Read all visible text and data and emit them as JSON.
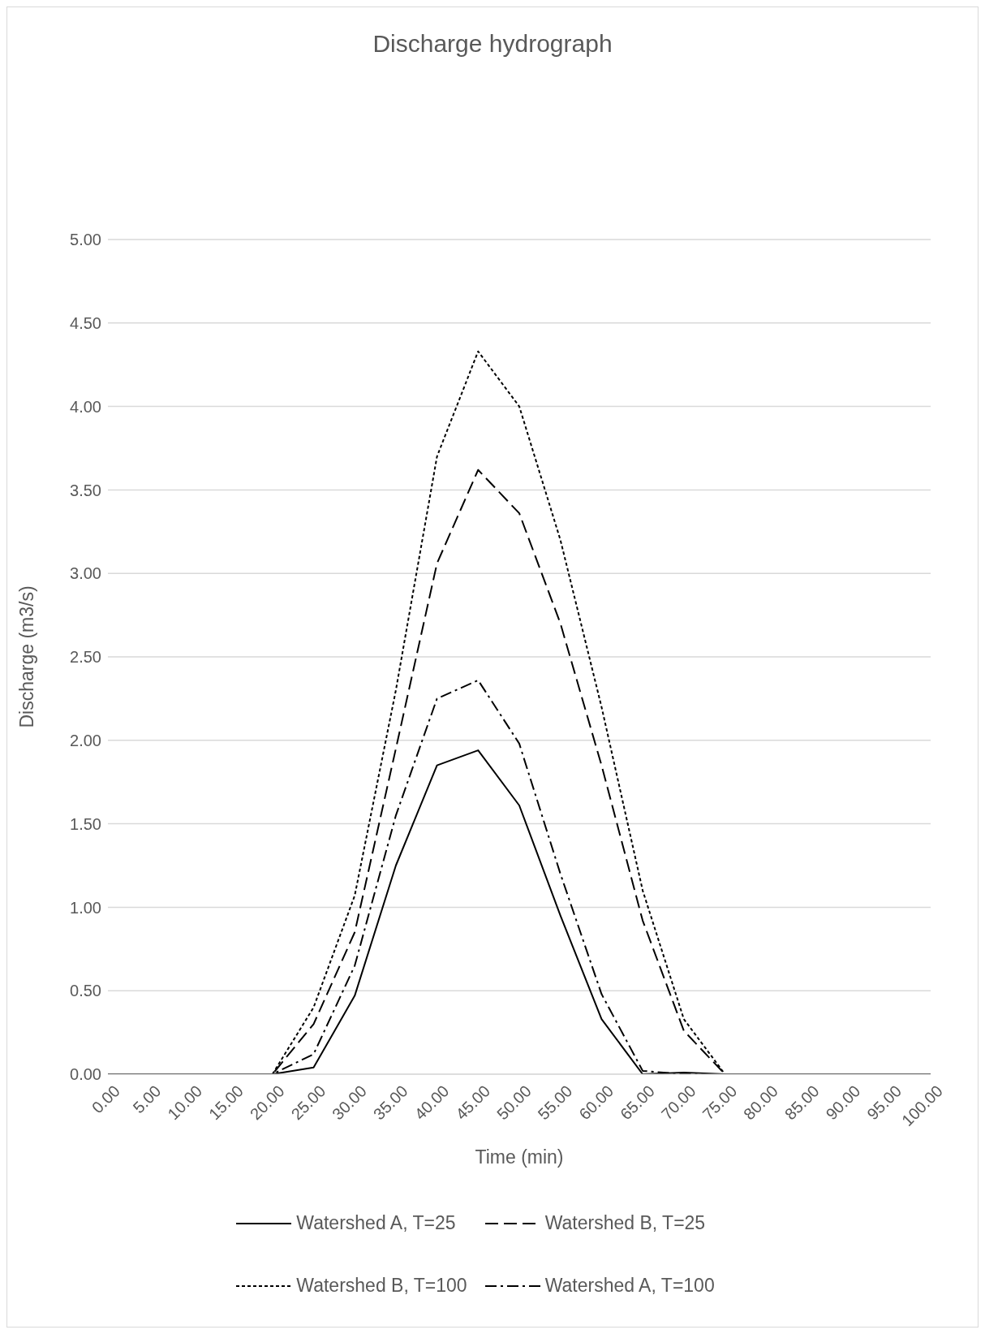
{
  "chart_data": {
    "type": "line",
    "title": "Discharge hydrograph",
    "xlabel": "Time (min)",
    "ylabel": "Discharge (m3/s)",
    "categories": [
      "0.00",
      "5.00",
      "10.00",
      "15.00",
      "20.00",
      "25.00",
      "30.00",
      "35.00",
      "40.00",
      "45.00",
      "50.00",
      "55.00",
      "60.00",
      "65.00",
      "70.00",
      "75.00",
      "80.00",
      "85.00",
      "90.00",
      "95.00",
      "100.00"
    ],
    "series": [
      {
        "name": "Watershed A, T=25",
        "color": "#000000",
        "line_style": "solid",
        "values": [
          0,
          0,
          0,
          0,
          0,
          0.04,
          0.47,
          1.25,
          1.85,
          1.94,
          1.61,
          0.95,
          0.33,
          0,
          0.01,
          0,
          0,
          0,
          0,
          0,
          0
        ]
      },
      {
        "name": "Watershed B, T=25",
        "color": "#000000",
        "line_style": "dashed",
        "values": [
          0,
          0,
          0,
          0,
          0,
          0.3,
          0.85,
          1.95,
          3.06,
          3.62,
          3.36,
          2.7,
          1.85,
          0.92,
          0.26,
          0,
          0,
          0,
          0,
          0,
          0
        ]
      },
      {
        "name": "Watershed B, T=100",
        "color": "#000000",
        "line_style": "dotted",
        "values": [
          0,
          0,
          0,
          0,
          0,
          0.4,
          1.07,
          2.3,
          3.7,
          4.33,
          4.0,
          3.2,
          2.2,
          1.1,
          0.33,
          0,
          0,
          0,
          0,
          0,
          0
        ]
      },
      {
        "name": "Watershed A, T=100",
        "color": "#000000",
        "line_style": "dashdot",
        "values": [
          0,
          0,
          0,
          0,
          0,
          0.12,
          0.65,
          1.55,
          2.25,
          2.36,
          1.98,
          1.2,
          0.48,
          0.02,
          0,
          0,
          0,
          0,
          0,
          0,
          0
        ]
      }
    ],
    "ylim": [
      0,
      5
    ],
    "yticks": [
      {
        "value": 0,
        "label": "0.00"
      },
      {
        "value": 0.5,
        "label": "0.50"
      },
      {
        "value": 1,
        "label": "1.00"
      },
      {
        "value": 1.5,
        "label": "1.50"
      },
      {
        "value": 2,
        "label": "2.00"
      },
      {
        "value": 2.5,
        "label": "2.50"
      },
      {
        "value": 3,
        "label": "3.00"
      },
      {
        "value": 3.5,
        "label": "3.50"
      },
      {
        "value": 4,
        "label": "4.00"
      },
      {
        "value": 4.5,
        "label": "4.50"
      },
      {
        "value": 5,
        "label": "5.00"
      }
    ],
    "grid": "y",
    "legend": "bottom",
    "marker": "none"
  }
}
